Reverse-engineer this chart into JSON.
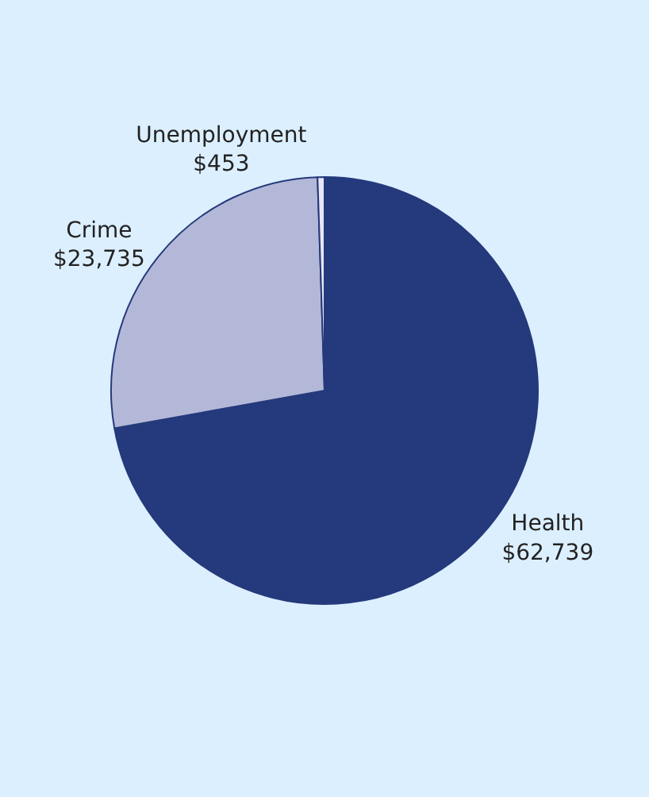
{
  "chart_data": {
    "type": "pie",
    "categories": [
      "Health",
      "Crime",
      "Unemployment"
    ],
    "values": [
      62739,
      23735,
      453
    ],
    "value_labels": [
      "$62,739",
      "$23,735",
      "$453"
    ],
    "colors": [
      "#253a7c",
      "#b4b8d8",
      "#e8e6f4"
    ],
    "legend": false
  }
}
